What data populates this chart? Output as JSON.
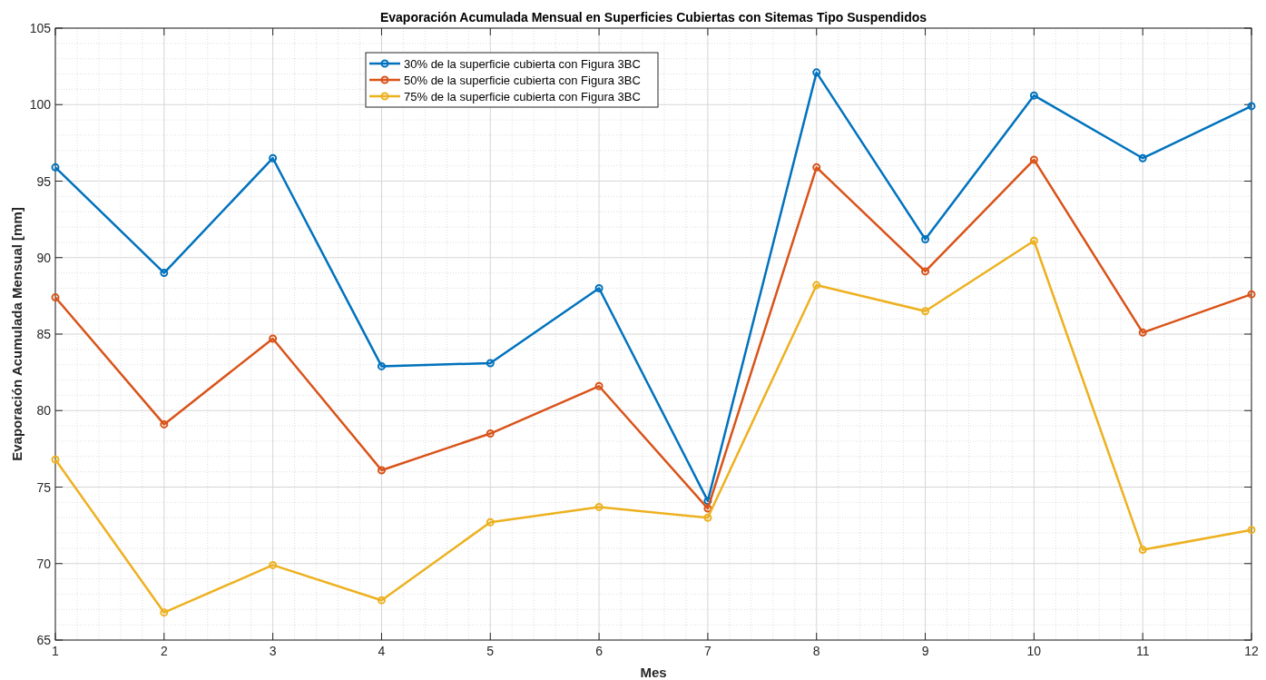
{
  "chart_data": {
    "type": "line",
    "title": "Evaporación Acumulada Mensual en Superficies Cubiertas con Sitemas Tipo Suspendidos",
    "xlabel": "Mes",
    "ylabel": "Evaporación Acumulada Mensual [mm]",
    "x": [
      1,
      2,
      3,
      4,
      5,
      6,
      7,
      8,
      9,
      10,
      11,
      12
    ],
    "xlim": [
      1,
      12
    ],
    "xticks": [
      1,
      2,
      3,
      4,
      5,
      6,
      7,
      8,
      9,
      10,
      11,
      12
    ],
    "ylim": [
      65,
      105
    ],
    "yticks": [
      65,
      70,
      75,
      80,
      85,
      90,
      95,
      100,
      105
    ],
    "grid": true,
    "legend": "top",
    "marker": "circle",
    "line_style": "solid",
    "series": [
      {
        "name": "30% de la superficie cubierta con Figura 3BC",
        "color": "#0072bd",
        "values": [
          95.9,
          89.0,
          96.5,
          82.9,
          83.1,
          88.0,
          74.1,
          102.1,
          91.2,
          100.6,
          96.5,
          99.9
        ]
      },
      {
        "name": "50% de la superficie cubierta con Figura 3BC",
        "color": "#d95319",
        "values": [
          87.4,
          79.1,
          84.7,
          76.1,
          78.5,
          81.6,
          73.6,
          95.9,
          89.1,
          96.4,
          85.1,
          87.6
        ]
      },
      {
        "name": "75% de la superficie cubierta con Figura 3BC",
        "color": "#edb120",
        "values": [
          76.8,
          66.8,
          69.9,
          67.6,
          72.7,
          73.7,
          73.0,
          88.2,
          86.5,
          91.1,
          70.9,
          72.2
        ]
      }
    ]
  }
}
